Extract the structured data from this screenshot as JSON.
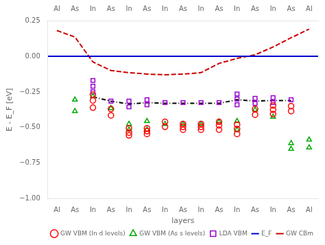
{
  "chart_data": {
    "type": "scatter",
    "xlabel": "layers",
    "ylabel": "E - E_F [eV]",
    "xlim": [
      -0.5,
      14.5
    ],
    "xticks": [
      {
        "value": 0,
        "label": "Al"
      },
      {
        "value": 1,
        "label": "As"
      },
      {
        "value": 2,
        "label": "In"
      },
      {
        "value": 3,
        "label": "As"
      },
      {
        "value": 4,
        "label": "In"
      },
      {
        "value": 5,
        "label": "As"
      },
      {
        "value": 6,
        "label": "In"
      },
      {
        "value": 7,
        "label": "As"
      },
      {
        "value": 8,
        "label": "In"
      },
      {
        "value": 9,
        "label": "As"
      },
      {
        "value": 10,
        "label": "In"
      },
      {
        "value": 11,
        "label": "As"
      },
      {
        "value": 12,
        "label": "In"
      },
      {
        "value": 13,
        "label": "As"
      },
      {
        "value": 14,
        "label": "Al"
      }
    ],
    "x2lim": [
      -0.5,
      14.5
    ],
    "x2ticks": [
      {
        "value": 0,
        "label": "Al"
      },
      {
        "value": 1,
        "label": "As"
      },
      {
        "value": 2,
        "label": "In"
      },
      {
        "value": 3,
        "label": "As"
      },
      {
        "value": 4,
        "label": "In"
      },
      {
        "value": 5,
        "label": "As"
      },
      {
        "value": 6,
        "label": "In"
      },
      {
        "value": 7,
        "label": "As"
      },
      {
        "value": 8,
        "label": "In"
      },
      {
        "value": 9,
        "label": "As"
      },
      {
        "value": 10,
        "label": "In"
      },
      {
        "value": 11,
        "label": "As"
      },
      {
        "value": 12,
        "label": "In"
      },
      {
        "value": 13,
        "label": "As"
      },
      {
        "value": 14,
        "label": "Al"
      }
    ],
    "ylim": [
      -1.0,
      0.25
    ],
    "yticks": [
      {
        "value": -1.0,
        "label": "−1.00"
      },
      {
        "value": -0.75,
        "label": "−0.75"
      },
      {
        "value": -0.5,
        "label": "−0.50"
      },
      {
        "value": -0.25,
        "label": "−0.25"
      },
      {
        "value": 0.0,
        "label": "0.00"
      },
      {
        "value": 0.25,
        "label": "0.25"
      }
    ],
    "grid": false,
    "legend": "lower right",
    "series": [
      {
        "name": "E_F",
        "type": "hline",
        "color": "#0000cc",
        "line_style": "solid",
        "y": 0.0
      },
      {
        "name": "GW VBM (In d levels)",
        "type": "scatter",
        "marker": "circle",
        "color": "#ff0000",
        "x": [
          2,
          2,
          2,
          3,
          3,
          4,
          4,
          4,
          5,
          5,
          5,
          6,
          6,
          7,
          7,
          7,
          8,
          8,
          8,
          9,
          9,
          9,
          10,
          10,
          10,
          11,
          11,
          12,
          12,
          12,
          13,
          13
        ],
        "values": [
          -0.27,
          -0.31,
          -0.36,
          -0.37,
          -0.415,
          -0.505,
          -0.535,
          -0.555,
          -0.505,
          -0.525,
          -0.545,
          -0.46,
          -0.495,
          -0.475,
          -0.495,
          -0.515,
          -0.475,
          -0.495,
          -0.515,
          -0.46,
          -0.485,
          -0.515,
          -0.48,
          -0.51,
          -0.545,
          -0.37,
          -0.41,
          -0.345,
          -0.375,
          -0.405,
          -0.35,
          -0.385
        ]
      },
      {
        "name": "GW VBM (As s levels)",
        "type": "scatter",
        "marker": "triangle",
        "color": "#00aa00",
        "x": [
          1,
          1,
          2,
          3,
          4,
          4,
          5,
          5,
          6,
          7,
          8,
          9,
          10,
          10,
          11,
          12,
          13,
          13,
          14,
          14
        ],
        "values": [
          -0.305,
          -0.385,
          -0.28,
          -0.365,
          -0.475,
          -0.515,
          -0.455,
          -0.515,
          -0.475,
          -0.475,
          -0.475,
          -0.46,
          -0.455,
          -0.515,
          -0.375,
          -0.425,
          -0.61,
          -0.65,
          -0.585,
          -0.64
        ]
      },
      {
        "name": "LDA VBM",
        "type": "scatter",
        "marker": "square",
        "color": "#9900cc",
        "x": [
          2,
          2,
          2,
          3,
          4,
          4,
          5,
          5,
          6,
          7,
          8,
          9,
          10,
          10,
          10,
          11,
          11,
          12,
          12,
          13
        ],
        "values": [
          -0.17,
          -0.21,
          -0.25,
          -0.315,
          -0.315,
          -0.355,
          -0.305,
          -0.34,
          -0.325,
          -0.325,
          -0.325,
          -0.325,
          -0.265,
          -0.3,
          -0.34,
          -0.295,
          -0.33,
          -0.29,
          -0.325,
          -0.305
        ]
      },
      {
        "name": "GW CBm",
        "type": "line",
        "color": "#cc0000",
        "line_style": "dashed",
        "x": [
          0,
          1,
          2,
          3,
          4,
          5,
          6,
          7,
          8,
          9,
          10,
          11,
          12,
          13,
          14
        ],
        "values": [
          0.18,
          0.135,
          -0.04,
          -0.1,
          -0.115,
          -0.125,
          -0.13,
          -0.125,
          -0.115,
          -0.05,
          -0.015,
          0.01,
          0.065,
          0.13,
          0.19
        ]
      },
      {
        "type": "line",
        "color": "#000000",
        "line_style": "dashdot",
        "x": [
          2,
          3,
          4,
          5,
          6,
          7,
          8,
          9,
          10,
          11,
          12,
          13
        ],
        "values": [
          -0.285,
          -0.315,
          -0.335,
          -0.325,
          -0.33,
          -0.33,
          -0.33,
          -0.33,
          -0.305,
          -0.315,
          -0.31,
          -0.31
        ]
      }
    ]
  }
}
